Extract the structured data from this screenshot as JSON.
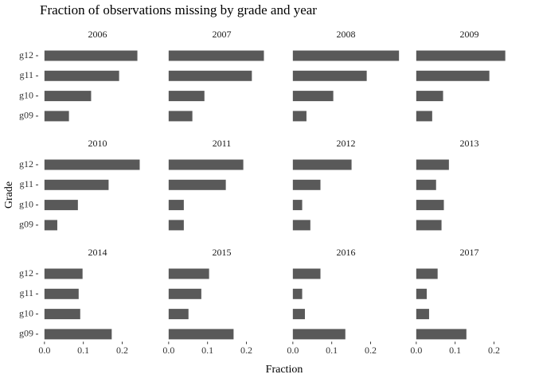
{
  "chart_data": {
    "type": "bar",
    "title": "Fraction of observations missing by grade and year",
    "xlabel": "Fraction",
    "ylabel": "Grade",
    "color": "#595959",
    "categories": [
      "g12",
      "g11",
      "g10",
      "g09"
    ],
    "xlim": [
      -0.014,
      0.287
    ],
    "xticks": [
      {
        "value": 0,
        "label": "0.0"
      },
      0.1,
      0.2
    ],
    "panels": [
      {
        "title": "2006",
        "values": [
          0.239,
          0.192,
          0.12,
          0.063
        ]
      },
      {
        "title": "2007",
        "values": [
          0.245,
          0.214,
          0.092,
          0.061
        ]
      },
      {
        "title": "2008",
        "values": [
          0.273,
          0.19,
          0.104,
          0.035
        ]
      },
      {
        "title": "2009",
        "values": [
          0.229,
          0.188,
          0.069,
          0.041
        ]
      },
      {
        "title": "2010",
        "values": [
          0.245,
          0.165,
          0.086,
          0.033
        ]
      },
      {
        "title": "2011",
        "values": [
          0.192,
          0.147,
          0.039,
          0.039
        ]
      },
      {
        "title": "2012",
        "values": [
          0.151,
          0.071,
          0.024,
          0.045
        ]
      },
      {
        "title": "2013",
        "values": [
          0.084,
          0.051,
          0.071,
          0.065
        ]
      },
      {
        "title": "2014",
        "values": [
          0.098,
          0.088,
          0.092,
          0.173
        ]
      },
      {
        "title": "2015",
        "values": [
          0.104,
          0.084,
          0.051,
          0.167
        ]
      },
      {
        "title": "2016",
        "values": [
          0.071,
          0.024,
          0.031,
          0.135
        ]
      },
      {
        "title": "2017",
        "values": [
          0.055,
          0.027,
          0.033,
          0.129
        ]
      }
    ]
  }
}
